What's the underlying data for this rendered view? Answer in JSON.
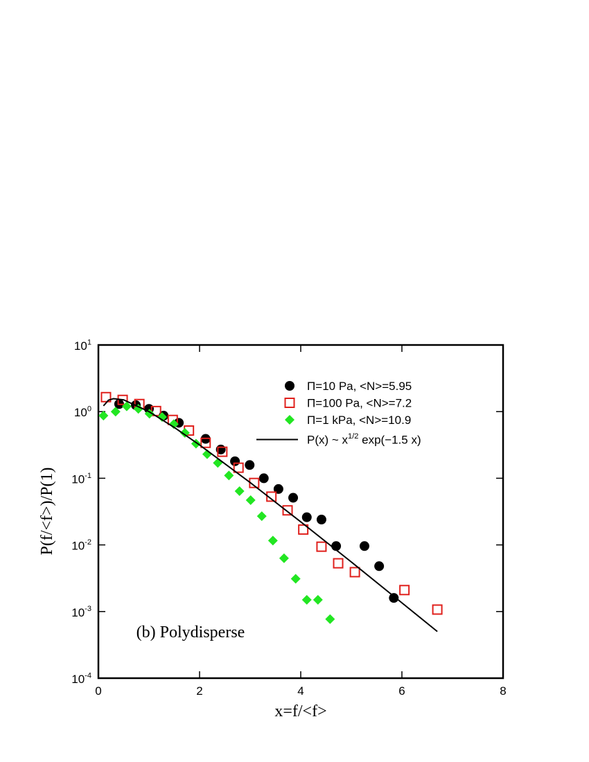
{
  "chart_data": {
    "type": "scatter",
    "title": "(b) Polydisperse",
    "xlabel": "x=f/<f>",
    "ylabel": "P(f/<f>)/P(1)",
    "xlim": [
      0,
      8
    ],
    "xticks": [
      0,
      2,
      4,
      6,
      8
    ],
    "ylim": [
      0.0001,
      10
    ],
    "yscale": "log",
    "yticks": [
      {
        "value": 0.0001,
        "label": "10^{-4}"
      },
      {
        "value": 0.001,
        "label": "10^{-3}"
      },
      {
        "value": 0.01,
        "label": "10^{-2}"
      },
      {
        "value": 0.1,
        "label": "10^{-1}"
      },
      {
        "value": 1,
        "label": "10^{0}"
      },
      {
        "value": 10,
        "label": "10^{1}"
      }
    ],
    "legend": "upper right",
    "series": [
      {
        "name": "Π=10 Pa, <N>=5.95",
        "color": "#000000",
        "marker": "circle",
        "x": [
          0.41,
          0.74,
          1.0,
          1.29,
          1.59,
          2.12,
          2.42,
          2.7,
          2.99,
          3.27,
          3.56,
          3.85,
          4.12,
          4.41,
          4.7,
          5.26,
          5.55,
          5.84
        ],
        "values": [
          1.3,
          1.25,
          1.1,
          0.87,
          0.68,
          0.39,
          0.27,
          0.18,
          0.158,
          0.1,
          0.069,
          0.051,
          0.026,
          0.024,
          0.0096,
          0.0096,
          0.0048,
          0.0016
        ]
      },
      {
        "name": "Π=100 Pa, <N>=7.2",
        "color": "#e0201c",
        "marker": "square",
        "x": [
          0.15,
          0.48,
          0.81,
          1.14,
          1.47,
          1.79,
          2.12,
          2.45,
          2.77,
          3.08,
          3.42,
          3.74,
          4.05,
          4.41,
          4.74,
          5.07,
          6.05,
          6.7
        ],
        "values": [
          1.65,
          1.5,
          1.3,
          1.02,
          0.75,
          0.52,
          0.34,
          0.25,
          0.144,
          0.085,
          0.053,
          0.033,
          0.017,
          0.0094,
          0.0053,
          0.0039,
          0.0021,
          0.00107
        ]
      },
      {
        "name": "Π=1 kPa, <N>=10.9",
        "color": "#22e622",
        "marker": "diamond",
        "x": [
          0.1,
          0.34,
          0.56,
          0.79,
          1.01,
          1.26,
          1.49,
          1.71,
          1.93,
          2.15,
          2.36,
          2.58,
          2.79,
          3.01,
          3.23,
          3.45,
          3.67,
          3.9,
          4.12,
          4.34,
          4.58
        ],
        "values": [
          0.87,
          1.0,
          1.2,
          1.1,
          0.93,
          0.83,
          0.65,
          0.48,
          0.33,
          0.23,
          0.17,
          0.11,
          0.064,
          0.047,
          0.027,
          0.0116,
          0.0063,
          0.0031,
          0.0015,
          0.0015,
          0.00077
        ]
      },
      {
        "name": "P(x) ~ x^{1/2} exp(−1.5 x)",
        "color": "#000000",
        "marker": "line",
        "x": [
          0.1,
          0.2,
          0.3,
          0.5,
          1,
          1.5,
          2,
          3,
          4,
          5,
          6,
          6.7
        ],
        "values": [
          1.22,
          1.485,
          1.566,
          1.5,
          1,
          0.579,
          0.316,
          0.0862,
          0.0222,
          0.00554,
          0.00135,
          0.000502
        ]
      }
    ]
  }
}
